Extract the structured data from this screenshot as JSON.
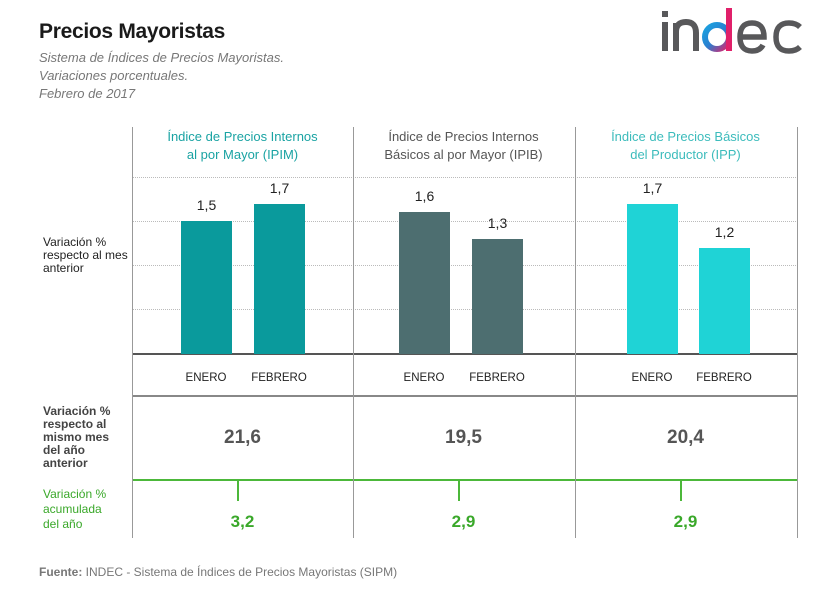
{
  "header": {
    "title": "Precios Mayoristas",
    "subtitle_lines": [
      "Sistema de Índices de Precios Mayoristas.",
      "Variaciones porcentuales.",
      "Febrero de 2017"
    ],
    "logo_text": "indec"
  },
  "row_labels": {
    "monthly": "Variación % respecto al mes anterior",
    "yoy": "Variación % respecto al mismo mes del año anterior",
    "ytd": "Variación % acumulada del año"
  },
  "chart_data": {
    "type": "bar",
    "categories": [
      "ENERO",
      "FEBRERO"
    ],
    "ylim": [
      0,
      2.0
    ],
    "grid": true,
    "panels": [
      {
        "title": "Índice de Precios Internos al por Mayor (IPIM)",
        "color": "#0a9a9c",
        "title_color": "#1aa3a3",
        "values": [
          1.5,
          1.7
        ],
        "labels": [
          "1,5",
          "1,7"
        ],
        "yoy": "21,6",
        "ytd": "3,2"
      },
      {
        "title": "Índice de Precios Internos Básicos al por Mayor (IPIB)",
        "color": "#4d6e70",
        "title_color": "#555555",
        "values": [
          1.6,
          1.3
        ],
        "labels": [
          "1,6",
          "1,3"
        ],
        "yoy": "19,5",
        "ytd": "2,9"
      },
      {
        "title": "Índice de Precios Básicos del Productor (IPP)",
        "color": "#1fd3d6",
        "title_color": "#3cbcbc",
        "values": [
          1.7,
          1.2
        ],
        "labels": [
          "1,7",
          "1,2"
        ],
        "yoy": "20,4",
        "ytd": "2,9"
      }
    ]
  },
  "footer": {
    "source_label": "Fuente:",
    "source_text": " INDEC - Sistema de Índices de Precios Mayoristas (SIPM)"
  }
}
